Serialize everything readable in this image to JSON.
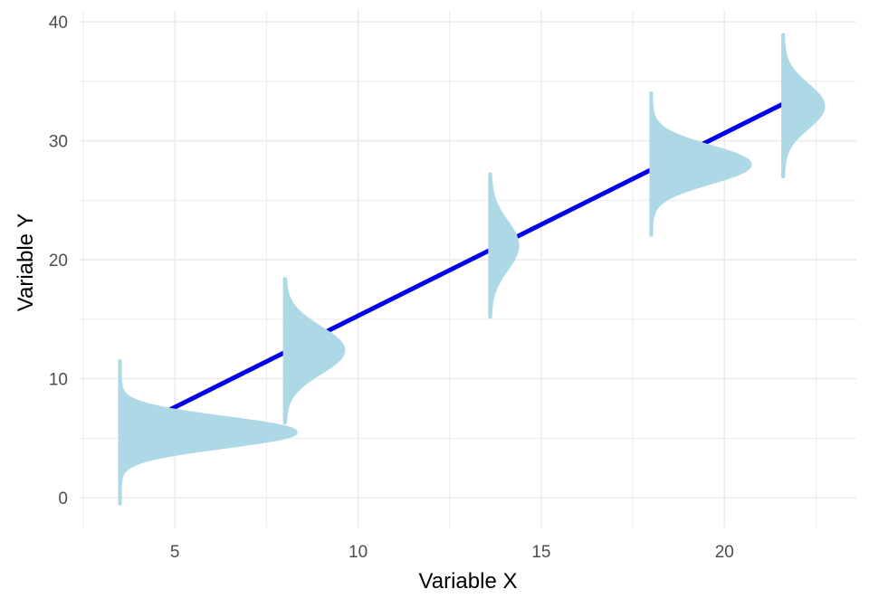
{
  "chart_data": {
    "type": "line",
    "title": "",
    "xlabel": "Variable X",
    "ylabel": "Variable Y",
    "xlim": [
      2.4,
      23.6
    ],
    "ylim": [
      -2.5,
      41
    ],
    "x_ticks": [
      5,
      10,
      15,
      20
    ],
    "y_ticks": [
      0,
      10,
      20,
      30,
      40
    ],
    "grid": true,
    "legend": "none",
    "series": [
      {
        "type": "line",
        "color": "#0000ee",
        "x": [
          4.6,
          21.6
        ],
        "y": [
          7.0,
          33.1
        ]
      }
    ],
    "distributions": [
      {
        "x": 3.5,
        "mean": 5.5,
        "sd": 1.2,
        "y_range": [
          -0.5,
          11.5
        ],
        "peak_width": 4.8
      },
      {
        "x": 8.0,
        "mean": 12.4,
        "sd": 1.9,
        "y_range": [
          6.3,
          18.4
        ],
        "peak_width": 1.6
      },
      {
        "x": 13.6,
        "mean": 21.2,
        "sd": 2.0,
        "y_range": [
          15.2,
          27.2
        ],
        "peak_width": 0.75
      },
      {
        "x": 18.0,
        "mean": 28.0,
        "sd": 1.5,
        "y_range": [
          22.1,
          34.0
        ],
        "peak_width": 2.7
      },
      {
        "x": 21.6,
        "mean": 32.9,
        "sd": 1.8,
        "y_range": [
          27.0,
          38.9
        ],
        "peak_width": 1.1
      }
    ],
    "colors": {
      "line": "#0000ee",
      "distribution": "#add8e6",
      "grid": "#ebebeb"
    }
  }
}
